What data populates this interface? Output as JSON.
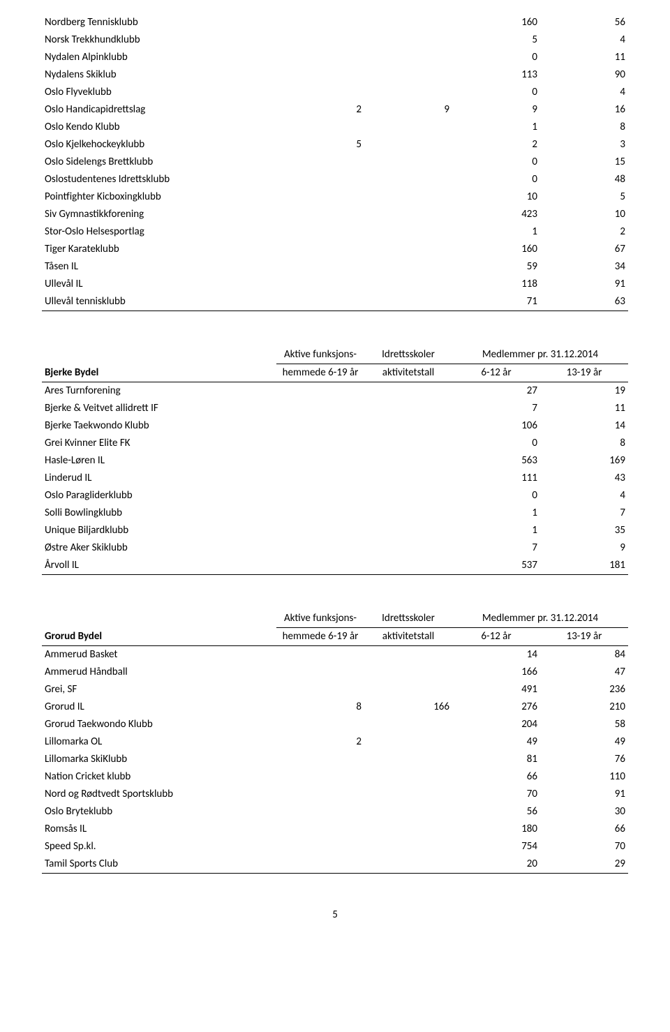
{
  "page_number": "5",
  "common_headers": {
    "col_a_line1": "Aktive funksjons-",
    "col_a_line2": "hemmede 6-19 år",
    "col_b_line1": "Idrettsskoler",
    "col_b_line2": "aktivitetstall",
    "col_cd_line1": "Medlemmer pr. 31.12.2014",
    "col_c_line2": "6-12 år",
    "col_d_line2": "13-19 år"
  },
  "continuation_rows": [
    {
      "name": "Nordberg Tennisklubb",
      "a": "",
      "b": "",
      "c": "160",
      "d": "56"
    },
    {
      "name": "Norsk Trekkhundklubb",
      "a": "",
      "b": "",
      "c": "5",
      "d": "4"
    },
    {
      "name": "Nydalen Alpinklubb",
      "a": "",
      "b": "",
      "c": "0",
      "d": "11"
    },
    {
      "name": "Nydalens Skiklub",
      "a": "",
      "b": "",
      "c": "113",
      "d": "90"
    },
    {
      "name": "Oslo Flyveklubb",
      "a": "",
      "b": "",
      "c": "0",
      "d": "4"
    },
    {
      "name": "Oslo Handicapidrettslag",
      "a": "2",
      "b": "9",
      "c": "9",
      "d": "16"
    },
    {
      "name": "Oslo Kendo Klubb",
      "a": "",
      "b": "",
      "c": "1",
      "d": "8"
    },
    {
      "name": "Oslo Kjelkehockeyklubb",
      "a": "5",
      "b": "",
      "c": "2",
      "d": "3"
    },
    {
      "name": "Oslo Sidelengs Brettklubb",
      "a": "",
      "b": "",
      "c": "0",
      "d": "15"
    },
    {
      "name": "Oslostudentenes Idrettsklubb",
      "a": "",
      "b": "",
      "c": "0",
      "d": "48"
    },
    {
      "name": "Pointfighter Kicboxingklubb",
      "a": "",
      "b": "",
      "c": "10",
      "d": "5"
    },
    {
      "name": "Siv Gymnastikkforening",
      "a": "",
      "b": "",
      "c": "423",
      "d": "10"
    },
    {
      "name": "Stor-Oslo Helsesportlag",
      "a": "",
      "b": "",
      "c": "1",
      "d": "2"
    },
    {
      "name": "Tiger Karateklubb",
      "a": "",
      "b": "",
      "c": "160",
      "d": "67"
    },
    {
      "name": "Tåsen IL",
      "a": "",
      "b": "",
      "c": "59",
      "d": "34"
    },
    {
      "name": "Ullevål IL",
      "a": "",
      "b": "",
      "c": "118",
      "d": "91"
    },
    {
      "name": "Ullevål tennisklubb",
      "a": "",
      "b": "",
      "c": "71",
      "d": "63"
    }
  ],
  "bjerke": {
    "title": "Bjerke Bydel",
    "rows": [
      {
        "name": "Ares Turnforening",
        "a": "",
        "b": "",
        "c": "27",
        "d": "19"
      },
      {
        "name": "Bjerke & Veitvet allidrett IF",
        "a": "",
        "b": "",
        "c": "7",
        "d": "11"
      },
      {
        "name": "Bjerke Taekwondo Klubb",
        "a": "",
        "b": "",
        "c": "106",
        "d": "14"
      },
      {
        "name": "Grei Kvinner Elite FK",
        "a": "",
        "b": "",
        "c": "0",
        "d": "8"
      },
      {
        "name": "Hasle-Løren IL",
        "a": "",
        "b": "",
        "c": "563",
        "d": "169"
      },
      {
        "name": "Linderud IL",
        "a": "",
        "b": "",
        "c": "111",
        "d": "43"
      },
      {
        "name": "Oslo Paragliderklubb",
        "a": "",
        "b": "",
        "c": "0",
        "d": "4"
      },
      {
        "name": "Solli Bowlingklubb",
        "a": "",
        "b": "",
        "c": "1",
        "d": "7"
      },
      {
        "name": "Unique Biljardklubb",
        "a": "",
        "b": "",
        "c": "1",
        "d": "35"
      },
      {
        "name": "Østre Aker Skiklubb",
        "a": "",
        "b": "",
        "c": "7",
        "d": "9"
      },
      {
        "name": "Årvoll IL",
        "a": "",
        "b": "",
        "c": "537",
        "d": "181"
      }
    ]
  },
  "grorud": {
    "title": "Grorud Bydel",
    "rows": [
      {
        "name": "Ammerud Basket",
        "a": "",
        "b": "",
        "c": "14",
        "d": "84"
      },
      {
        "name": "Ammerud Håndball",
        "a": "",
        "b": "",
        "c": "166",
        "d": "47"
      },
      {
        "name": "Grei, SF",
        "a": "",
        "b": "",
        "c": "491",
        "d": "236"
      },
      {
        "name": "Grorud IL",
        "a": "8",
        "b": "166",
        "c": "276",
        "d": "210"
      },
      {
        "name": "Grorud Taekwondo Klubb",
        "a": "",
        "b": "",
        "c": "204",
        "d": "58"
      },
      {
        "name": "Lillomarka OL",
        "a": "2",
        "b": "",
        "c": "49",
        "d": "49"
      },
      {
        "name": "Lillomarka SkiKlubb",
        "a": "",
        "b": "",
        "c": "81",
        "d": "76"
      },
      {
        "name": "Nation Cricket klubb",
        "a": "",
        "b": "",
        "c": "66",
        "d": "110"
      },
      {
        "name": "Nord og Rødtvedt Sportsklubb",
        "a": "",
        "b": "",
        "c": "70",
        "d": "91"
      },
      {
        "name": "Oslo Bryteklubb",
        "a": "",
        "b": "",
        "c": "56",
        "d": "30"
      },
      {
        "name": "Romsås IL",
        "a": "",
        "b": "",
        "c": "180",
        "d": "66"
      },
      {
        "name": "Speed Sp.kl.",
        "a": "",
        "b": "",
        "c": "754",
        "d": "70"
      },
      {
        "name": "Tamil Sports Club",
        "a": "",
        "b": "",
        "c": "20",
        "d": "29"
      }
    ]
  }
}
